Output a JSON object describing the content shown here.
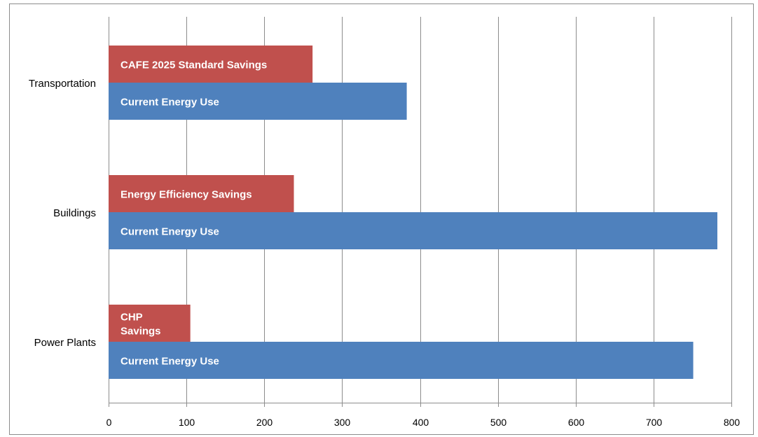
{
  "chart_data": {
    "type": "bar",
    "orientation": "horizontal",
    "categories": [
      "Transportation",
      "Buildings",
      "Power Plants"
    ],
    "series": [
      {
        "key": "savings",
        "color": "#c0504d",
        "values": [
          262,
          238,
          105
        ],
        "labels": [
          "CAFE 2025 Standard Savings",
          "Energy Efficiency Savings",
          "CHP\nSavings"
        ]
      },
      {
        "key": "current",
        "color": "#4f81bd",
        "values": [
          383,
          782,
          751
        ],
        "labels": [
          "Current Energy Use",
          "Current Energy Use",
          "Current Energy Use"
        ]
      }
    ],
    "xlim": [
      0,
      800
    ],
    "xticks": [
      "0",
      "100",
      "200",
      "300",
      "400",
      "500",
      "600",
      "700",
      "800"
    ],
    "grid": true,
    "legend": "none"
  }
}
